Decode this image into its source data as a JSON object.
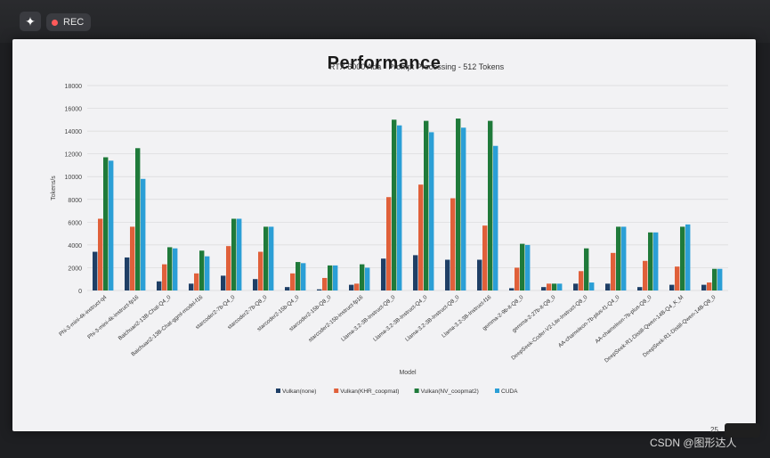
{
  "top_bar": {
    "ai_icon": "sparkle-icon",
    "rec_label": "REC",
    "rec_color": "#ff5a5a"
  },
  "slide": {
    "title": "Performance",
    "page_number": "25"
  },
  "watermark": "CSDN @图形达人",
  "chart_data": {
    "type": "bar",
    "title": "RTX 6000 Ada - Prompt Processing - 512 Tokens",
    "xlabel": "Model",
    "ylabel": "Tokens/s",
    "ylim": [
      0,
      18000
    ],
    "yticks": [
      "0",
      "2000",
      "4000",
      "6000",
      "8000",
      "10000",
      "12000",
      "14000",
      "16000",
      "18000"
    ],
    "grid": true,
    "legend_position": "bottom",
    "categories": [
      "Phi-3-mini-4k-instruct-q4",
      "Phi-3-mini-4k-instruct-fp16",
      "Baichuan2-13B-Chat-Q4_0",
      "Baichuan2-13B-Chat-ggml-model-f16",
      "starcoder2-7b-Q4_0",
      "starcoder2-7b-Q8_0",
      "starcoder2-15b-Q4_0",
      "starcoder2-15b-Q8_0",
      "starcoder2-15b-instruct-fp16",
      "Llama-3.2-3B-Instruct-Q8_0",
      "Llama-3.2-3B-Instruct-Q4_0",
      "Llama-3.2-3B-Instruct-Q8_0",
      "Llama-3.2-3B-Instruct-f16",
      "gemma-2-9b-it-Q8_0",
      "gemma-2-27b-it-Q8_0",
      "DeepSeek-Coder-V2-Lite-Instruct-Q8_0",
      "AA-chameleon-7b-plus-f1-Q4_0",
      "AA-chameleon-7b-plus-Q8_0",
      "DeepSeek-R1-Distill-Qwen-14B-Q4_K_M",
      "DeepSeek-R1-Distill-Qwen-14B-Q8_0"
    ],
    "series": [
      {
        "name": "Vulkan(none)",
        "color": "#1f3f66",
        "values": [
          3400,
          2900,
          800,
          600,
          1300,
          1000,
          300,
          100,
          500,
          2800,
          3100,
          2700,
          2700,
          200,
          300,
          600,
          600,
          300,
          500,
          500
        ]
      },
      {
        "name": "Vulkan(KHR_coopmat)",
        "color": "#e0603a",
        "values": [
          6300,
          5600,
          2300,
          1500,
          3900,
          3400,
          1500,
          1100,
          600,
          8200,
          9300,
          8100,
          5700,
          2000,
          600,
          1700,
          3300,
          2600,
          2100,
          700
        ]
      },
      {
        "name": "Vulkan(NV_coopmat2)",
        "color": "#1f7a3a",
        "values": [
          11700,
          12500,
          3800,
          3500,
          6300,
          5600,
          2500,
          2200,
          2300,
          15000,
          14900,
          15100,
          14900,
          4100,
          600,
          3700,
          5600,
          5100,
          5600,
          1900
        ]
      },
      {
        "name": "CUDA",
        "color": "#2b9fd6",
        "values": [
          11400,
          9800,
          3700,
          3000,
          6300,
          5600,
          2400,
          2200,
          2000,
          14500,
          13900,
          14300,
          12700,
          4000,
          600,
          700,
          5600,
          5100,
          5800,
          1900
        ]
      }
    ]
  }
}
